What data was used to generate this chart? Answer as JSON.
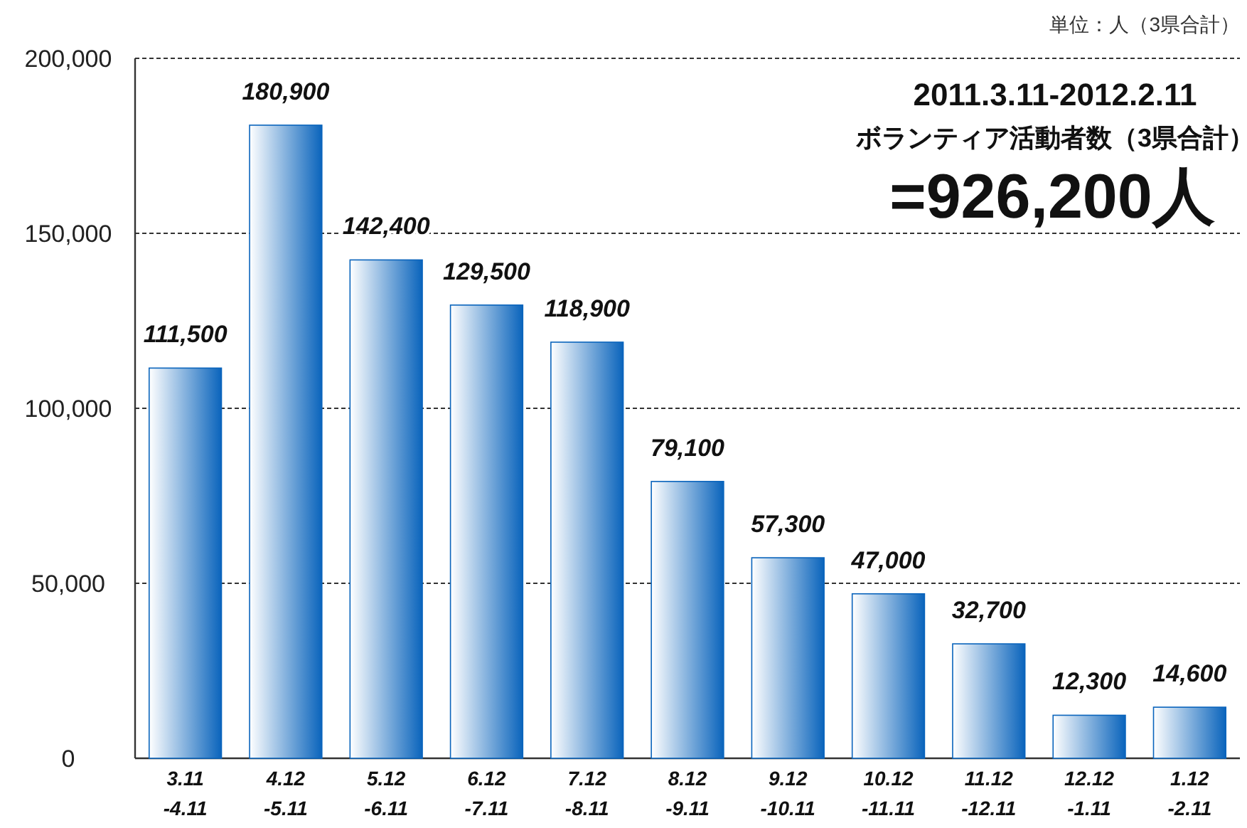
{
  "chart_data": {
    "type": "bar",
    "title": "2011.3.11-2012.2.11",
    "subtitle": "ボランティア活動者数（3県合計）",
    "annotations": [
      "=926,200人",
      "単位：人（3県合計）"
    ],
    "categories": [
      "3.11\n-4.11",
      "4.12\n-5.11",
      "5.12\n-6.11",
      "6.12\n-7.11",
      "7.12\n-8.11",
      "8.12\n-9.11",
      "9.12\n-10.11",
      "10.12\n-11.11",
      "11.12\n-12.11",
      "12.12\n-1.11",
      "1.12\n-2.11"
    ],
    "values": [
      111500,
      180900,
      142400,
      129500,
      118900,
      79100,
      57300,
      47000,
      32700,
      12300,
      14600
    ],
    "value_labels": [
      "111,500",
      "180,900",
      "142,400",
      "129,500",
      "118,900",
      "79,100",
      "57,300",
      "47,000",
      "32,700",
      "12,300",
      "14,600"
    ],
    "color": "#0a64bc",
    "ylim": [
      0,
      200000
    ],
    "yticks": [
      0,
      {
        "value": 50000,
        "label": "50,000"
      },
      {
        "value": 100000,
        "label": "100,000"
      },
      {
        "value": 150000,
        "label": "150,000"
      },
      {
        "value": 200000,
        "label": "200,000"
      }
    ],
    "grid": "y"
  }
}
